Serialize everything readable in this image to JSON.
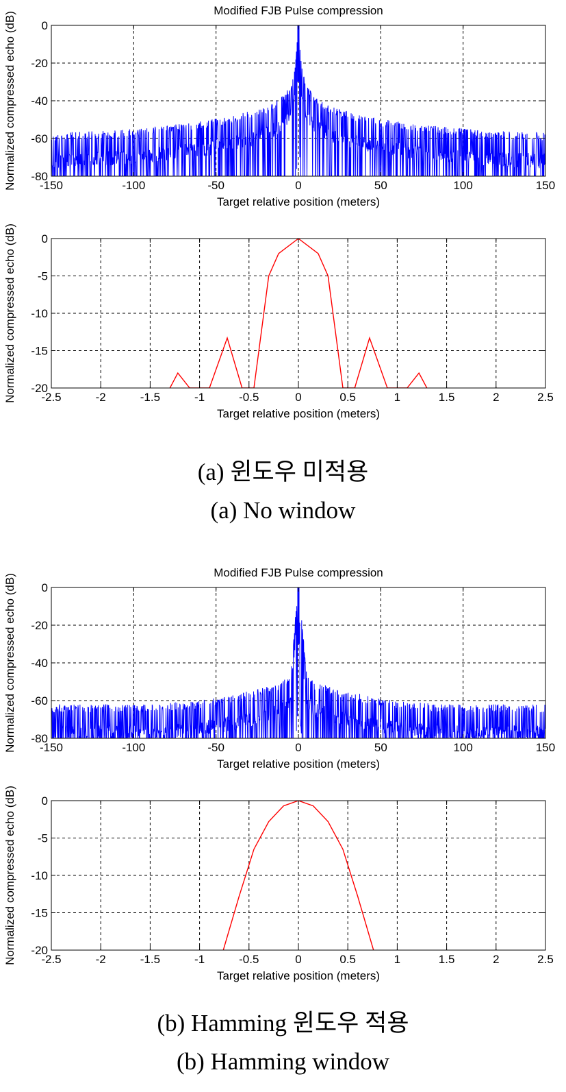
{
  "panels": [
    {
      "title": "Modified FJB Pulse compression",
      "caption_ko": "(a) 윈도우 미적용",
      "caption_en": "(a) No window"
    },
    {
      "title": "Modified FJB Pulse compression",
      "caption_ko": "(b) Hamming 윈도우 적용",
      "caption_en": "(b) Hamming window"
    }
  ],
  "chart_data": [
    {
      "type": "line",
      "title": "Modified FJB Pulse compression",
      "xlabel": "Target relative position (meters)",
      "ylabel": "Normalized compressed echo (dB)",
      "xlim": [
        -150,
        150
      ],
      "ylim": [
        -80,
        0
      ],
      "xticks": [
        -150,
        -100,
        -50,
        0,
        50,
        100,
        150
      ],
      "yticks": [
        0,
        -20,
        -40,
        -60,
        -80
      ],
      "grid": true,
      "color": "#0000ff",
      "series": [
        {
          "kind": "noisy-sidelobes",
          "x": [
            -150,
            -120,
            -90,
            -60,
            -40,
            -20,
            -10,
            -5,
            -2,
            0,
            2,
            5,
            10,
            20,
            40,
            60,
            90,
            120,
            150
          ],
          "y_upper": [
            -57,
            -56,
            -54,
            -51,
            -48,
            -43,
            -38,
            -32,
            -22,
            0,
            -22,
            -32,
            -38,
            -43,
            -48,
            -51,
            -54,
            -56,
            -57
          ],
          "y_floor": -80
        }
      ]
    },
    {
      "type": "line",
      "title": "",
      "xlabel": "Target relative position (meters)",
      "ylabel": "Normalized compressed echo (dB)",
      "xlim": [
        -2.5,
        2.5
      ],
      "ylim": [
        -20,
        0
      ],
      "xticks": [
        -2.5,
        -2,
        -1.5,
        -1,
        -0.5,
        0,
        0.5,
        1,
        1.5,
        2,
        2.5
      ],
      "yticks": [
        0,
        -5,
        -10,
        -15,
        -20
      ],
      "grid": true,
      "color": "#ff0000",
      "series": [
        {
          "kind": "sinc-db",
          "x": [
            -1.3,
            -1.22,
            -1.1,
            -0.9,
            -0.72,
            -0.57,
            -0.45,
            -0.3,
            -0.2,
            0,
            0.2,
            0.3,
            0.45,
            0.57,
            0.72,
            0.9,
            1.1,
            1.22,
            1.3
          ],
          "y": [
            -20,
            -18,
            -20,
            -20,
            -13.3,
            -20,
            -20,
            -5,
            -2,
            0,
            -2,
            -5,
            -20,
            -20,
            -13.3,
            -20,
            -20,
            -18,
            -20
          ]
        }
      ]
    },
    {
      "type": "line",
      "title": "Modified FJB Pulse compression",
      "xlabel": "Target relative position (meters)",
      "ylabel": "Normalized compressed echo (dB)",
      "xlim": [
        -150,
        150
      ],
      "ylim": [
        -80,
        0
      ],
      "xticks": [
        -150,
        -100,
        -50,
        0,
        50,
        100,
        150
      ],
      "yticks": [
        0,
        -20,
        -40,
        -60,
        -80
      ],
      "grid": true,
      "color": "#0000ff",
      "series": [
        {
          "kind": "noisy-sidelobes",
          "x": [
            -150,
            -120,
            -90,
            -60,
            -40,
            -20,
            -10,
            -5,
            -2,
            0,
            2,
            5,
            10,
            20,
            40,
            60,
            90,
            120,
            150
          ],
          "y_upper": [
            -62,
            -62,
            -62,
            -60,
            -57,
            -53,
            -50,
            -46,
            -17,
            0,
            -17,
            -46,
            -50,
            -53,
            -57,
            -60,
            -62,
            -62,
            -62
          ],
          "y_floor": -80
        }
      ]
    },
    {
      "type": "line",
      "title": "",
      "xlabel": "Target relative position (meters)",
      "ylabel": "Normalized compressed echo (dB)",
      "xlim": [
        -2.5,
        2.5
      ],
      "ylim": [
        -20,
        0
      ],
      "xticks": [
        -2.5,
        -2,
        -1.5,
        -1,
        -0.5,
        0,
        0.5,
        1,
        1.5,
        2,
        2.5
      ],
      "yticks": [
        0,
        -5,
        -10,
        -15,
        -20
      ],
      "grid": true,
      "color": "#ff0000",
      "series": [
        {
          "kind": "mainlobe",
          "x": [
            -0.76,
            -0.6,
            -0.45,
            -0.3,
            -0.15,
            0,
            0.15,
            0.3,
            0.45,
            0.6,
            0.76
          ],
          "y": [
            -20,
            -12.8,
            -6.5,
            -2.8,
            -0.7,
            0,
            -0.7,
            -2.8,
            -6.5,
            -12.8,
            -20
          ]
        }
      ]
    }
  ]
}
